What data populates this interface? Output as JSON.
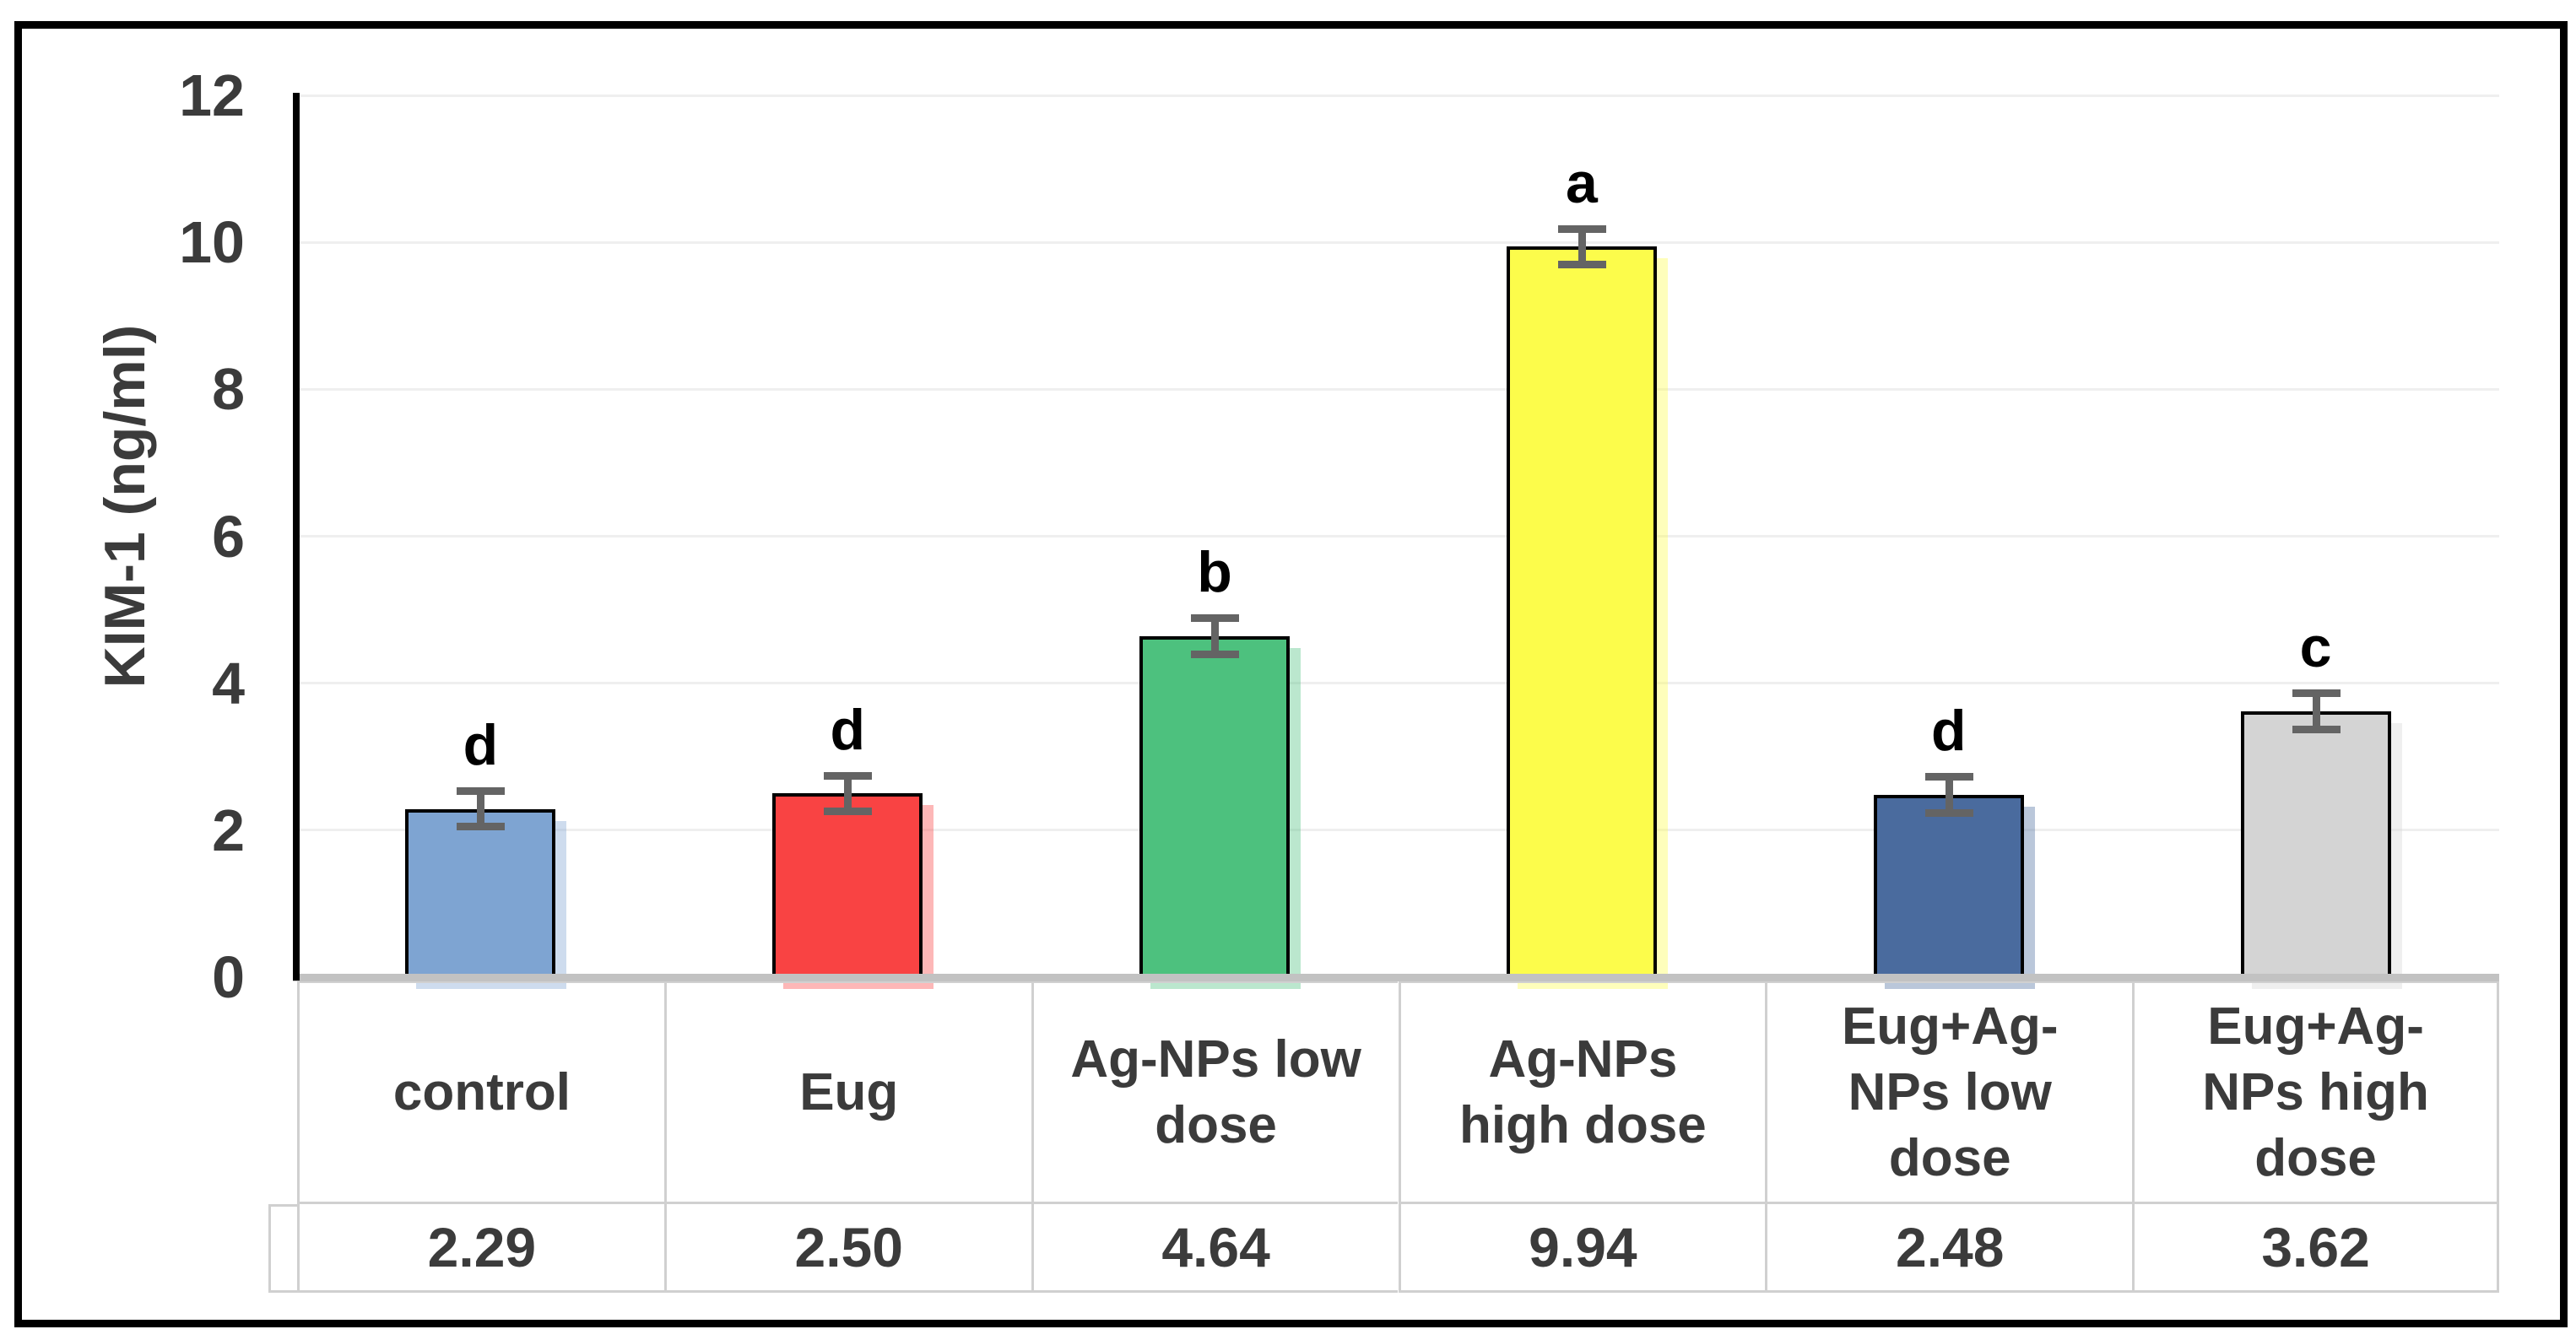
{
  "chart_data": {
    "type": "bar",
    "title": "",
    "ylabel": "KIM-1 (ng/ml)",
    "xlabel": "",
    "ylim": [
      0,
      12
    ],
    "yticks": [
      0,
      2,
      4,
      6,
      8,
      10,
      12
    ],
    "grid": true,
    "legend": false,
    "categories": [
      "control",
      "Eug",
      "Ag-NPs low\ndose",
      "Ag-NPs\nhigh dose",
      "Eug+Ag-\nNPs low\ndose",
      "Eug+Ag-\nNPs high\ndose"
    ],
    "values": [
      2.29,
      2.5,
      4.64,
      9.94,
      2.48,
      3.62
    ],
    "value_labels": [
      "2.29",
      "2.50",
      "4.64",
      "9.94",
      "2.48",
      "3.62"
    ],
    "significance_letters": [
      "d",
      "d",
      "b",
      "a",
      "d",
      "c"
    ],
    "bar_colors": [
      "#7EA4D2",
      "#F94343",
      "#4DC17E",
      "#FCFC4B",
      "#4A6B9E",
      "#D4D4D4"
    ],
    "bar_border_color": "#000000",
    "error_bar_value": 0.25,
    "error_bar_color": "#646464",
    "gridline_color": "#EFEFEF",
    "axis_color": "#000000",
    "baseline_color": "#C2C2C2",
    "table_border_color": "#D0D0D0",
    "text_color": "#3B3B3B",
    "data_table_shown": true
  }
}
